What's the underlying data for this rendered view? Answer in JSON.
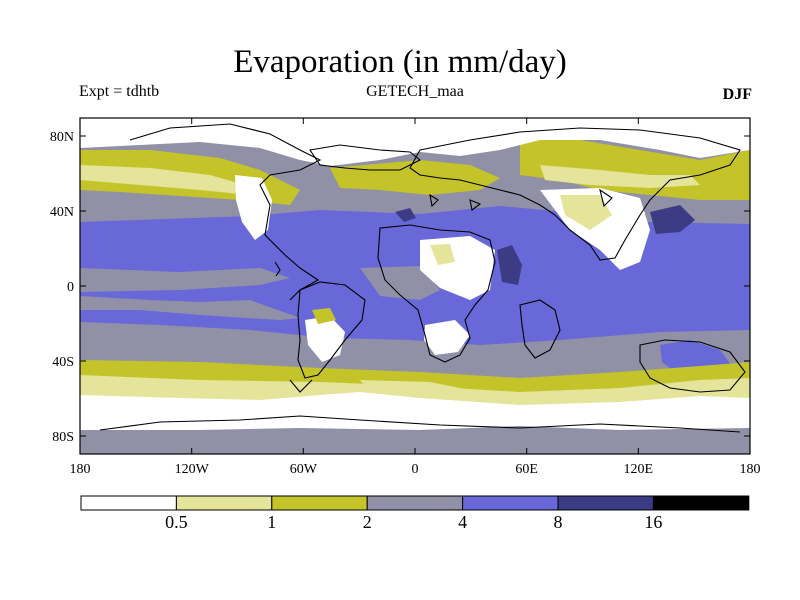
{
  "header": {
    "title": "Evaporation (in mm/day)",
    "experiment": "Expt = tdhtb",
    "dataset": "GETECH_maa",
    "season": "DJF"
  },
  "map": {
    "lon_ticks": [
      "180",
      "120W",
      "60W",
      "0",
      "60E",
      "120E",
      "180"
    ],
    "lat_ticks": [
      "80N",
      "40N",
      "0",
      "40S",
      "80S"
    ],
    "ocean_colors": {
      "band_lt_0_5": "#ffffff",
      "band_0_5_1": "#e4e49a",
      "band_1_2": "#c4c42a",
      "band_2_4": "#9090a6",
      "band_4_8": "#6868d8",
      "band_8_16": "#3c3c84",
      "band_gt_16": "#000000"
    }
  },
  "colorbar": {
    "labels": [
      "0.5",
      "1",
      "2",
      "4",
      "8",
      "16"
    ],
    "colors": [
      "#ffffff",
      "#e4e49a",
      "#c4c42a",
      "#9090a6",
      "#6868d8",
      "#3c3c84",
      "#000000"
    ]
  }
}
